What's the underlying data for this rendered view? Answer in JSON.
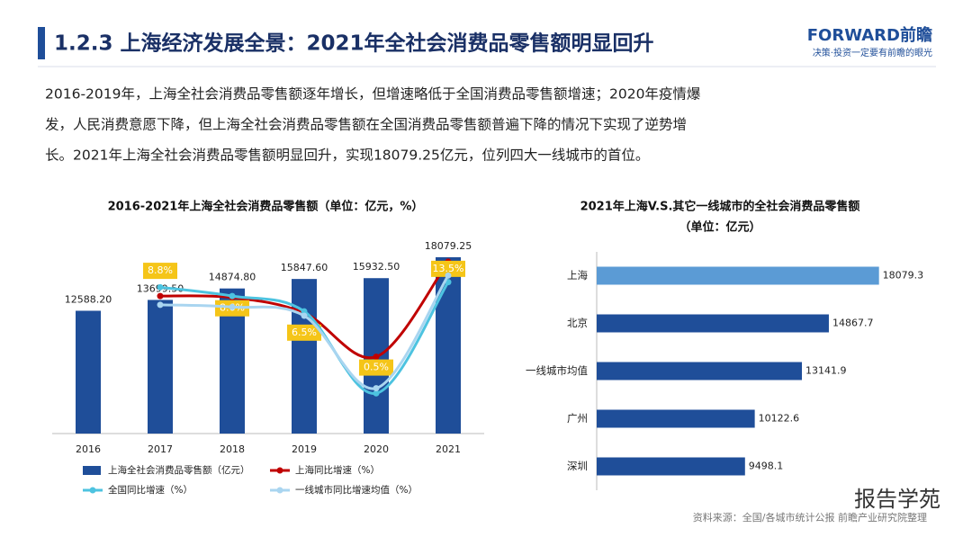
{
  "header": {
    "title": "1.2.3 上海经济发展全景：2021年全社会消费品零售额明显回升",
    "brand": "FORWARD前瞻",
    "slogan": "决策·投资一定要有前瞻的眼光"
  },
  "paragraph": [
    "2016-2019年，上海全社会消费品零售额逐年增长，但增速略低于全国消费品零售额增速；2020年疫情爆",
    "发，人民消费意愿下降，但上海全社会消费品零售额在全国消费品零售额普遍下降的情况下实现了逆势增",
    "长。2021年上海全社会消费品零售额明显回升，实现18079.25亿元，位列四大一线城市的首位。"
  ],
  "chart_data": [
    {
      "type": "bar-line",
      "title": "2016-2021年上海全社会消费品零售额（单位：亿元，%）",
      "categories": [
        "2016",
        "2017",
        "2018",
        "2019",
        "2020",
        "2021"
      ],
      "ylim": [
        0,
        22500
      ],
      "y2lim": [
        -10,
        20
      ],
      "series": [
        {
          "name": "上海全社会消费品零售额（亿元）",
          "type": "bar",
          "color": "#1f4e99",
          "values": [
            12588.2,
            13699.5,
            14874.8,
            15847.6,
            15932.5,
            18079.25
          ],
          "value_labels": [
            "12588.20",
            "13699.50",
            "14874.80",
            "15847.60",
            "15932.50",
            "18079.25"
          ]
        },
        {
          "name": "上海同比增速（%）",
          "type": "line",
          "axis": "y2",
          "color": "#c00000",
          "values": [
            null,
            8.8,
            8.6,
            6.5,
            0.5,
            13.5
          ],
          "value_labels": [
            null,
            "8.8%",
            "8.6%",
            "6.5%",
            "0.5%",
            "13.5%"
          ]
        },
        {
          "name": "全国同比增速（%）",
          "type": "line",
          "axis": "y2",
          "color": "#4dc3e0",
          "values": [
            null,
            10.0,
            8.8,
            6.7,
            -4.5,
            10.7
          ]
        },
        {
          "name": "一线城市同比增速均值（%）",
          "type": "line",
          "axis": "y2",
          "color": "#a9d5f0",
          "values": [
            null,
            7.6,
            7.3,
            6.1,
            -3.8,
            11.6
          ]
        }
      ]
    },
    {
      "type": "hbar",
      "title": [
        "2021年上海V.S.其它一线城市的全社会消费品零售额",
        "（单位：亿元）"
      ],
      "categories": [
        "上海",
        "北京",
        "一线城市均值",
        "广州",
        "深圳"
      ],
      "values": [
        18079.3,
        14867.7,
        13141.9,
        10122.6,
        9498.1
      ],
      "colors": [
        "#5b9bd5",
        "#1f4e99",
        "#1f4e99",
        "#1f4e99",
        "#1f4e99"
      ],
      "xlim": [
        0,
        20000
      ]
    }
  ],
  "source": "资料来源：全国/各城市统计公报 前瞻产业研究院整理",
  "watermark": "报告学苑"
}
